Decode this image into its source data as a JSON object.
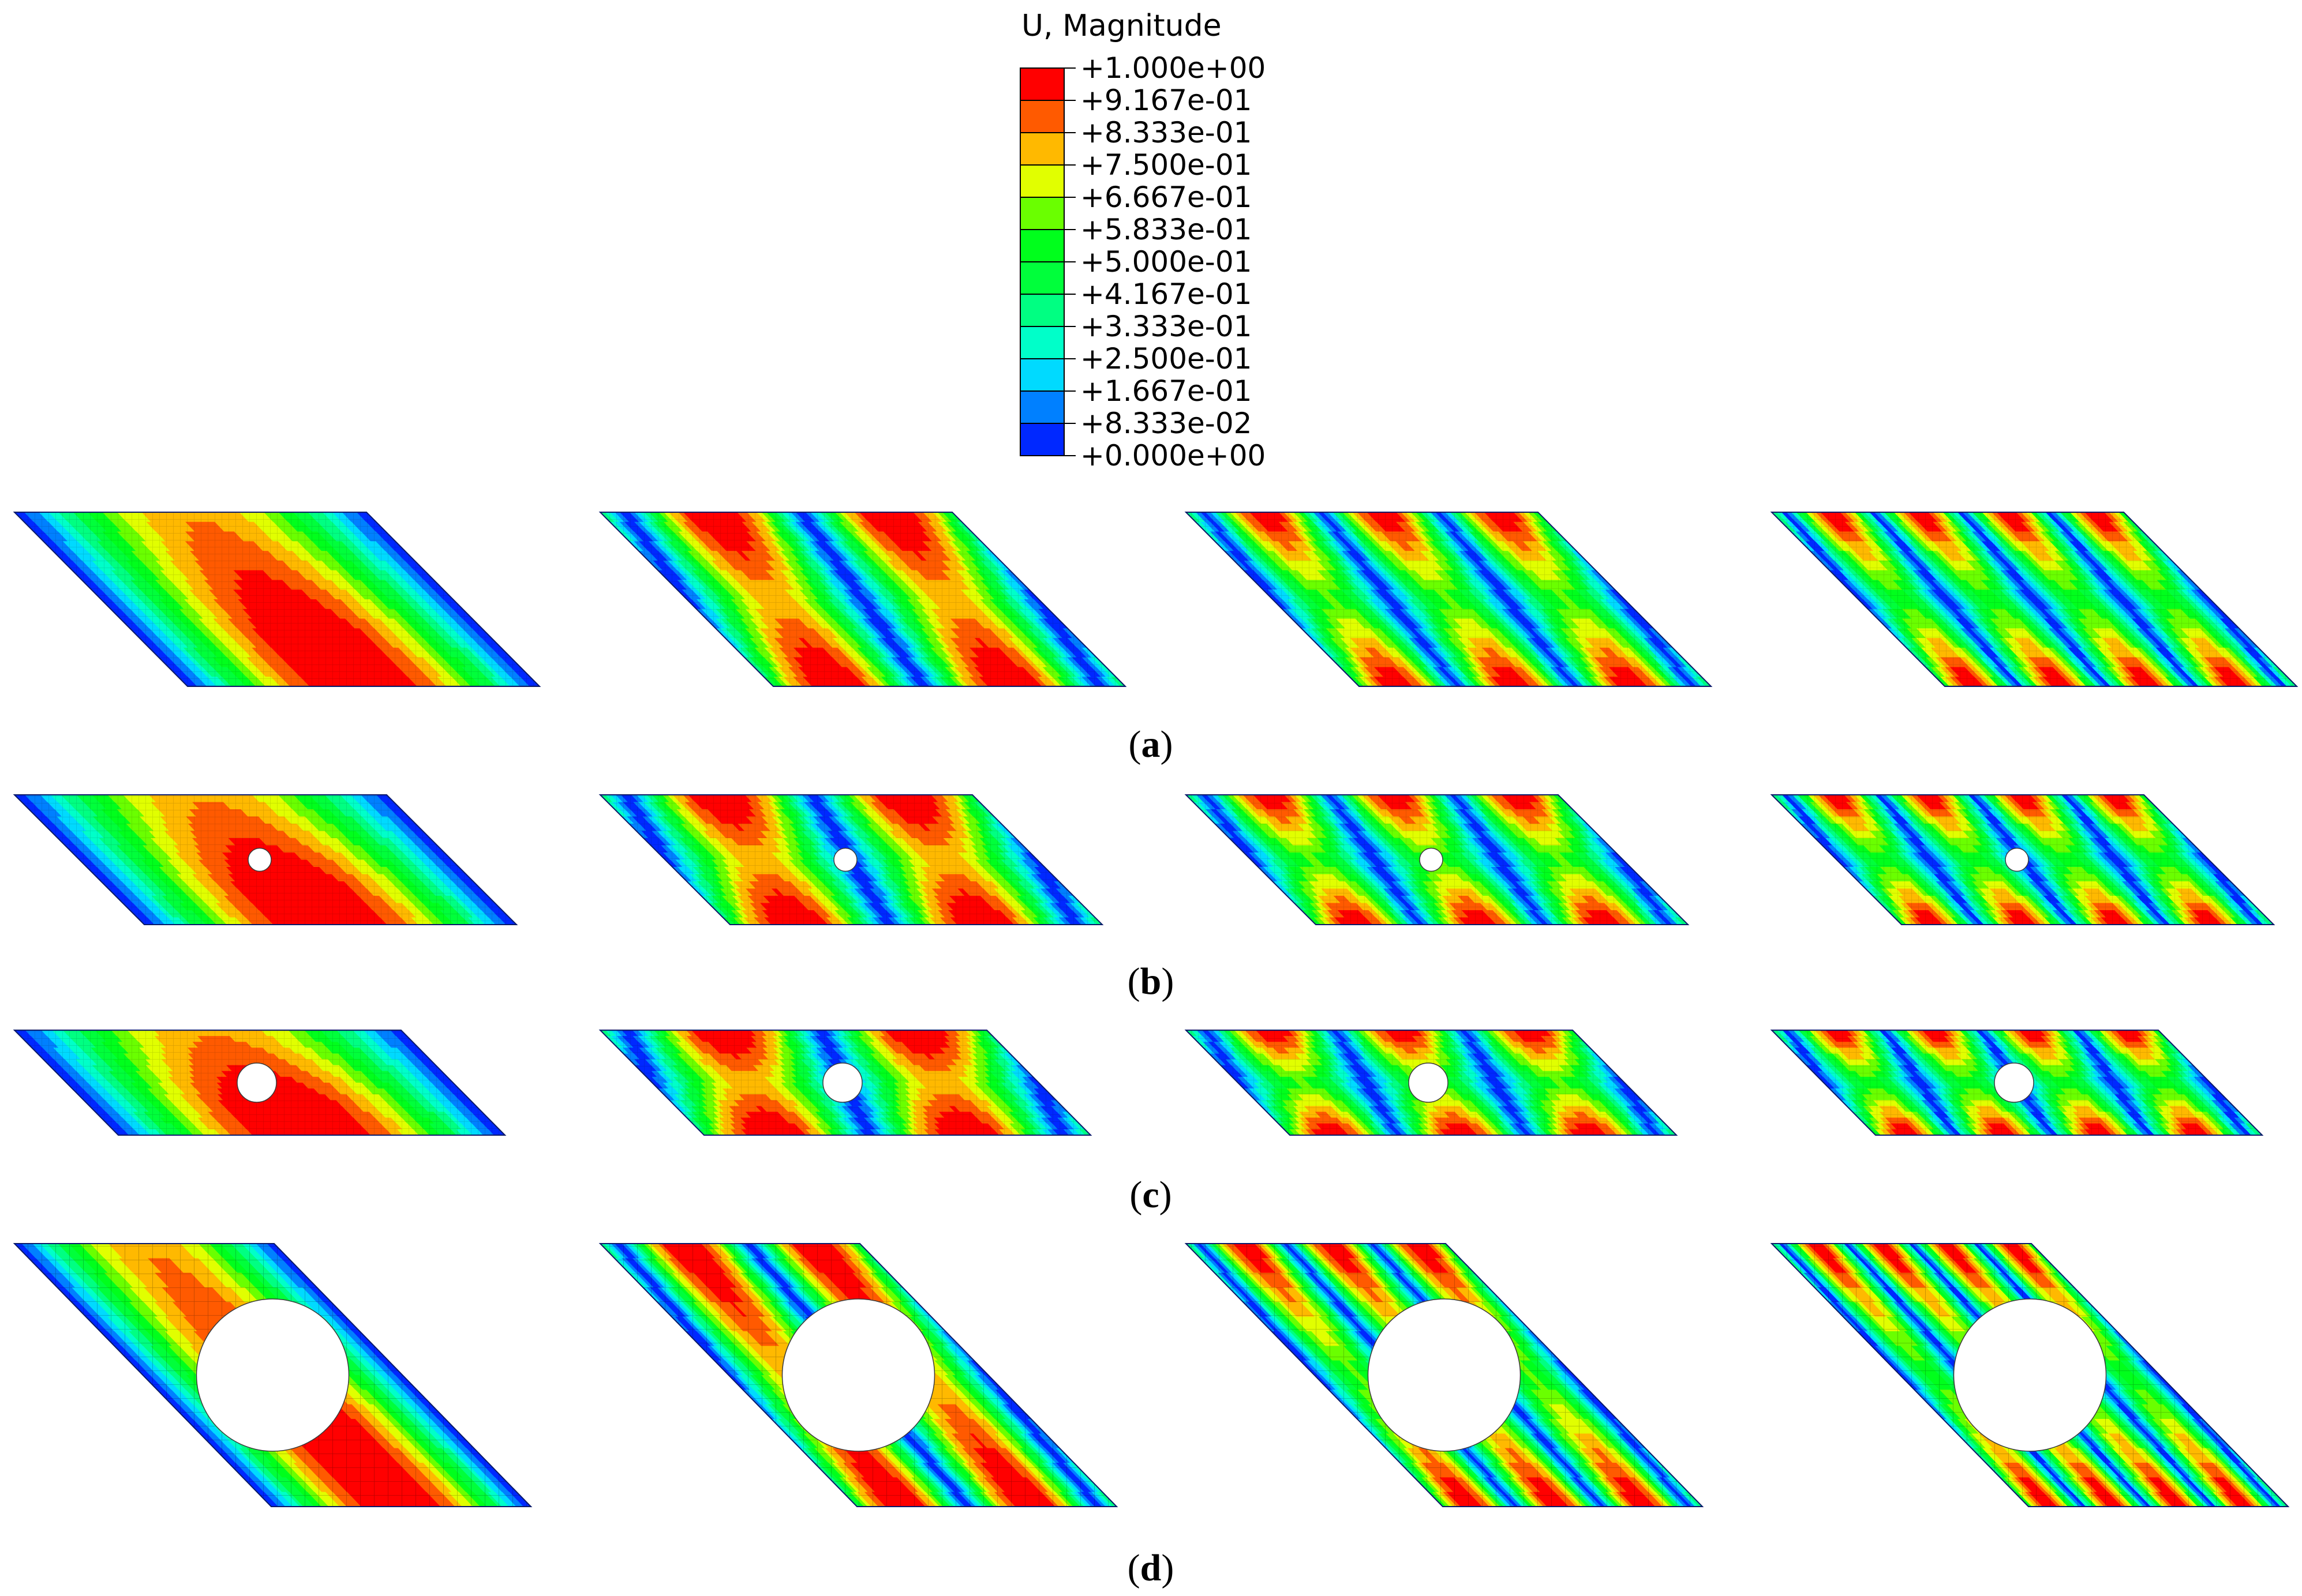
{
  "legend": {
    "title": "U, Magnitude",
    "labels": [
      "+1.000e+00",
      "+9.167e-01",
      "+8.333e-01",
      "+7.500e-01",
      "+6.667e-01",
      "+5.833e-01",
      "+5.000e-01",
      "+4.167e-01",
      "+3.333e-01",
      "+2.500e-01",
      "+1.667e-01",
      "+8.333e-02",
      "+0.000e+00"
    ],
    "colors": [
      "#ff0000",
      "#ff5a00",
      "#ffb900",
      "#e1ff00",
      "#6aff00",
      "#00ff1c",
      "#00ff3b",
      "#00ff82",
      "#00ffc9",
      "#00daff",
      "#0080ff",
      "#0028ff",
      "#0000ff"
    ]
  },
  "rows": [
    {
      "caption_letter": "a",
      "hole": "none",
      "panels": [
        {
          "mode": 1
        },
        {
          "mode": 2
        },
        {
          "mode": 3
        },
        {
          "mode": 4
        }
      ]
    },
    {
      "caption_letter": "b",
      "hole": "tiny",
      "panels": [
        {
          "mode": 1
        },
        {
          "mode": 2
        },
        {
          "mode": 3
        },
        {
          "mode": 4
        }
      ]
    },
    {
      "caption_letter": "c",
      "hole": "small",
      "panels": [
        {
          "mode": 1
        },
        {
          "mode": 2
        },
        {
          "mode": 3
        },
        {
          "mode": 4
        }
      ]
    },
    {
      "caption_letter": "d",
      "hole": "large",
      "panels": [
        {
          "mode": 1
        },
        {
          "mode": 2
        },
        {
          "mode": 3
        },
        {
          "mode": 4
        }
      ]
    }
  ]
}
